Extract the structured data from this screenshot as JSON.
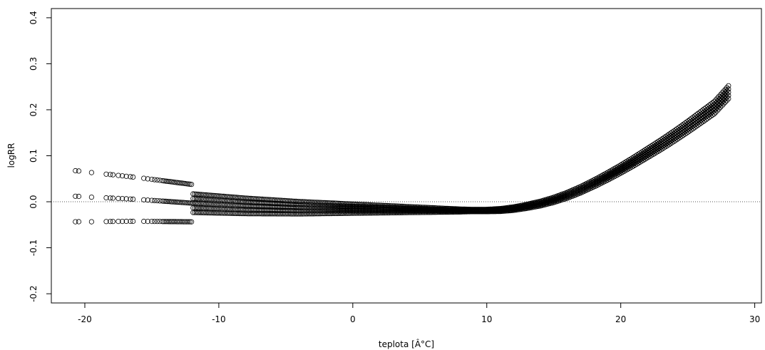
{
  "chart_data": {
    "type": "scatter",
    "title": "",
    "xlabel": "teplota [Â°C]",
    "ylabel": "logRR",
    "xlim": [
      -22.5,
      30.5
    ],
    "ylim": [
      -0.22,
      0.42
    ],
    "xticks": [
      -20,
      -10,
      0,
      10,
      20,
      30
    ],
    "yticks": [
      -0.2,
      -0.1,
      0.0,
      0.1,
      0.2,
      0.3,
      0.4
    ],
    "xtick_labels": [
      "-20",
      "-10",
      "0",
      "10",
      "20",
      "30"
    ],
    "ytick_labels": [
      "-0.2",
      "-0.1",
      "0.0",
      "0.1",
      "0.2",
      "0.3",
      "0.4"
    ],
    "reference_line": {
      "y": 0.0,
      "style": "dotted"
    },
    "marker": "open-circle",
    "grid": false,
    "curve_keypoints": {
      "x": [
        -20.6,
        -19.5,
        -18,
        -16,
        -14,
        -12,
        -10,
        -8,
        -6,
        -4,
        -2,
        0,
        2,
        4,
        6,
        8,
        10,
        11,
        12,
        13,
        14,
        15,
        16,
        17,
        18,
        19,
        20,
        21,
        22,
        23,
        24,
        25,
        26,
        27,
        28.1
      ],
      "y": [
        0.012,
        0.01,
        0.008,
        0.005,
        0.001,
        -0.003,
        -0.006,
        -0.009,
        -0.011,
        -0.013,
        -0.014,
        -0.015,
        -0.016,
        -0.017,
        -0.018,
        -0.019,
        -0.019,
        -0.018,
        -0.015,
        -0.01,
        -0.004,
        0.004,
        0.014,
        0.026,
        0.04,
        0.055,
        0.071,
        0.088,
        0.106,
        0.124,
        0.143,
        0.163,
        0.184,
        0.205,
        0.24
      ]
    }
  }
}
